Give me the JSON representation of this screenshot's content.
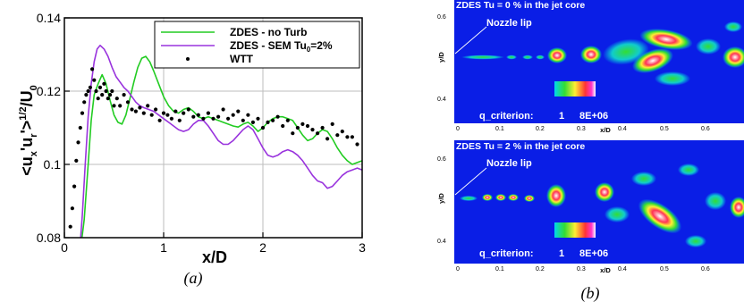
{
  "chart_data": [
    {
      "type": "line",
      "xlabel": "x/D",
      "ylabel": "<u",
      "ylabel_sub1": "x",
      "ylabel_mid": "'u",
      "ylabel_sub2": "r",
      "ylabel_tail": "'>",
      "ylabel_sup": "1/2",
      "ylabel_end": "/U",
      "ylabel_sub3": "0",
      "xlim": [
        0,
        3
      ],
      "ylim": [
        0.08,
        0.14
      ],
      "xticks": [
        0,
        1,
        2,
        3
      ],
      "yticks": [
        0.08,
        0.1,
        0.12,
        0.14
      ],
      "xtick_labels": [
        "0",
        "1",
        "2",
        "3"
      ],
      "ytick_labels": [
        "0.08",
        "0.1",
        "0.12",
        "0.14"
      ],
      "grid": true,
      "legend_position": "top-right",
      "caption": "(a)",
      "series": [
        {
          "name": "ZDES - no Turb",
          "color": "#22cc22",
          "style": "line",
          "x": [
            0.15,
            0.2,
            0.24,
            0.27,
            0.3,
            0.34,
            0.38,
            0.42,
            0.46,
            0.5,
            0.54,
            0.58,
            0.62,
            0.66,
            0.7,
            0.74,
            0.78,
            0.82,
            0.86,
            0.9,
            0.95,
            1.0,
            1.05,
            1.1,
            1.15,
            1.2,
            1.25,
            1.3,
            1.35,
            1.4,
            1.45,
            1.5,
            1.55,
            1.6,
            1.65,
            1.7,
            1.75,
            1.8,
            1.85,
            1.9,
            1.95,
            2.0,
            2.05,
            2.1,
            2.15,
            2.2,
            2.25,
            2.3,
            2.35,
            2.4,
            2.45,
            2.5,
            2.55,
            2.6,
            2.65,
            2.7,
            2.75,
            2.8,
            2.85,
            2.9,
            2.95,
            3.0
          ],
          "y": [
            0.074,
            0.085,
            0.1,
            0.112,
            0.119,
            0.122,
            0.1245,
            0.122,
            0.1175,
            0.1135,
            0.1115,
            0.111,
            0.1135,
            0.118,
            0.1225,
            0.1265,
            0.129,
            0.1295,
            0.128,
            0.1255,
            0.122,
            0.1185,
            0.116,
            0.1145,
            0.114,
            0.115,
            0.1155,
            0.1145,
            0.113,
            0.1125,
            0.113,
            0.1125,
            0.112,
            0.1115,
            0.111,
            0.1105,
            0.1102,
            0.111,
            0.1115,
            0.1105,
            0.109,
            0.11,
            0.1115,
            0.1125,
            0.113,
            0.113,
            0.1125,
            0.112,
            0.11,
            0.108,
            0.1065,
            0.107,
            0.1085,
            0.1095,
            0.109,
            0.107,
            0.1045,
            0.1025,
            0.101,
            0.1,
            0.1005,
            0.101
          ]
        },
        {
          "name": "ZDES - SEM Tu",
          "name_sub": "0",
          "name_tail": "=2%",
          "color": "#9933dd",
          "style": "line",
          "x": [
            0.15,
            0.18,
            0.21,
            0.24,
            0.27,
            0.3,
            0.33,
            0.36,
            0.4,
            0.44,
            0.48,
            0.52,
            0.56,
            0.6,
            0.64,
            0.68,
            0.72,
            0.76,
            0.8,
            0.85,
            0.9,
            0.95,
            1.0,
            1.05,
            1.1,
            1.15,
            1.2,
            1.25,
            1.3,
            1.35,
            1.4,
            1.45,
            1.5,
            1.55,
            1.6,
            1.65,
            1.7,
            1.75,
            1.8,
            1.85,
            1.9,
            1.95,
            2.0,
            2.05,
            2.1,
            2.15,
            2.2,
            2.25,
            2.3,
            2.35,
            2.4,
            2.45,
            2.5,
            2.55,
            2.6,
            2.65,
            2.7,
            2.75,
            2.8,
            2.85,
            2.9,
            2.95,
            3.0
          ],
          "y": [
            0.075,
            0.086,
            0.1,
            0.113,
            0.122,
            0.128,
            0.1315,
            0.1325,
            0.1315,
            0.1295,
            0.1265,
            0.124,
            0.1225,
            0.121,
            0.12,
            0.1185,
            0.117,
            0.116,
            0.1155,
            0.115,
            0.1145,
            0.1135,
            0.1125,
            0.1115,
            0.1105,
            0.1095,
            0.109,
            0.1095,
            0.111,
            0.112,
            0.112,
            0.1105,
            0.1085,
            0.1065,
            0.1055,
            0.1055,
            0.1065,
            0.108,
            0.1095,
            0.1105,
            0.1095,
            0.107,
            0.1045,
            0.1025,
            0.102,
            0.1025,
            0.1035,
            0.104,
            0.1035,
            0.1025,
            0.101,
            0.099,
            0.097,
            0.0955,
            0.095,
            0.0935,
            0.094,
            0.0955,
            0.097,
            0.098,
            0.0985,
            0.099,
            0.0985
          ]
        },
        {
          "name": "WTT",
          "color": "#000000",
          "style": "scatter",
          "x": [
            0.06,
            0.08,
            0.1,
            0.12,
            0.14,
            0.16,
            0.18,
            0.2,
            0.22,
            0.24,
            0.26,
            0.28,
            0.3,
            0.32,
            0.34,
            0.36,
            0.38,
            0.4,
            0.42,
            0.44,
            0.46,
            0.48,
            0.5,
            0.53,
            0.56,
            0.6,
            0.64,
            0.68,
            0.72,
            0.76,
            0.8,
            0.84,
            0.88,
            0.92,
            0.96,
            1.0,
            1.04,
            1.08,
            1.12,
            1.16,
            1.2,
            1.25,
            1.3,
            1.35,
            1.4,
            1.45,
            1.5,
            1.55,
            1.6,
            1.65,
            1.7,
            1.75,
            1.8,
            1.85,
            1.9,
            1.95,
            2.0,
            2.05,
            2.1,
            2.15,
            2.2,
            2.25,
            2.3,
            2.35,
            2.4,
            2.45,
            2.5,
            2.55,
            2.6,
            2.65,
            2.7,
            2.75,
            2.8,
            2.85,
            2.9,
            2.95
          ],
          "y": [
            0.083,
            0.088,
            0.094,
            0.101,
            0.106,
            0.11,
            0.114,
            0.117,
            0.119,
            0.12,
            0.121,
            0.126,
            0.123,
            0.12,
            0.118,
            0.121,
            0.119,
            0.122,
            0.12,
            0.118,
            0.119,
            0.12,
            0.116,
            0.118,
            0.116,
            0.119,
            0.117,
            0.115,
            0.1145,
            0.1155,
            0.114,
            0.116,
            0.1135,
            0.115,
            0.112,
            0.114,
            0.1135,
            0.1125,
            0.1145,
            0.112,
            0.114,
            0.115,
            0.113,
            0.1135,
            0.1125,
            0.114,
            0.1125,
            0.113,
            0.115,
            0.1125,
            0.1135,
            0.1145,
            0.112,
            0.1135,
            0.1115,
            0.1125,
            0.11,
            0.1115,
            0.112,
            0.113,
            0.1105,
            0.112,
            0.1085,
            0.11,
            0.111,
            0.1105,
            0.1095,
            0.1085,
            0.11,
            0.107,
            0.111,
            0.108,
            0.109,
            0.1075,
            0.1075,
            0.1055
          ]
        }
      ]
    },
    {
      "type": "heatmap",
      "caption": "(b)",
      "xlabel": "x/D",
      "ylabel": "y/D",
      "xtick_labels": [
        "0",
        "0.1",
        "0.2",
        "0.3",
        "0.4",
        "0.5",
        "0.6"
      ],
      "ytick_labels": [
        "0.4",
        "0.6"
      ],
      "colorscale_label": "q_criterion:",
      "colorscale_min": "1",
      "colorscale_max": "8E+06",
      "colors": {
        "background": "#0a1ee6",
        "low": "#00c8e6",
        "mid": "#33dd33",
        "high": "#ffee33",
        "peak": "#ee2233",
        "max": "#ffffff"
      },
      "panels": [
        {
          "title": "ZDES Tu = 0 % in the jet core",
          "annotation": "Nozzle lip"
        },
        {
          "title": "ZDES Tu = 2 % in the jet core",
          "annotation": "Nozzle lip"
        }
      ]
    }
  ]
}
